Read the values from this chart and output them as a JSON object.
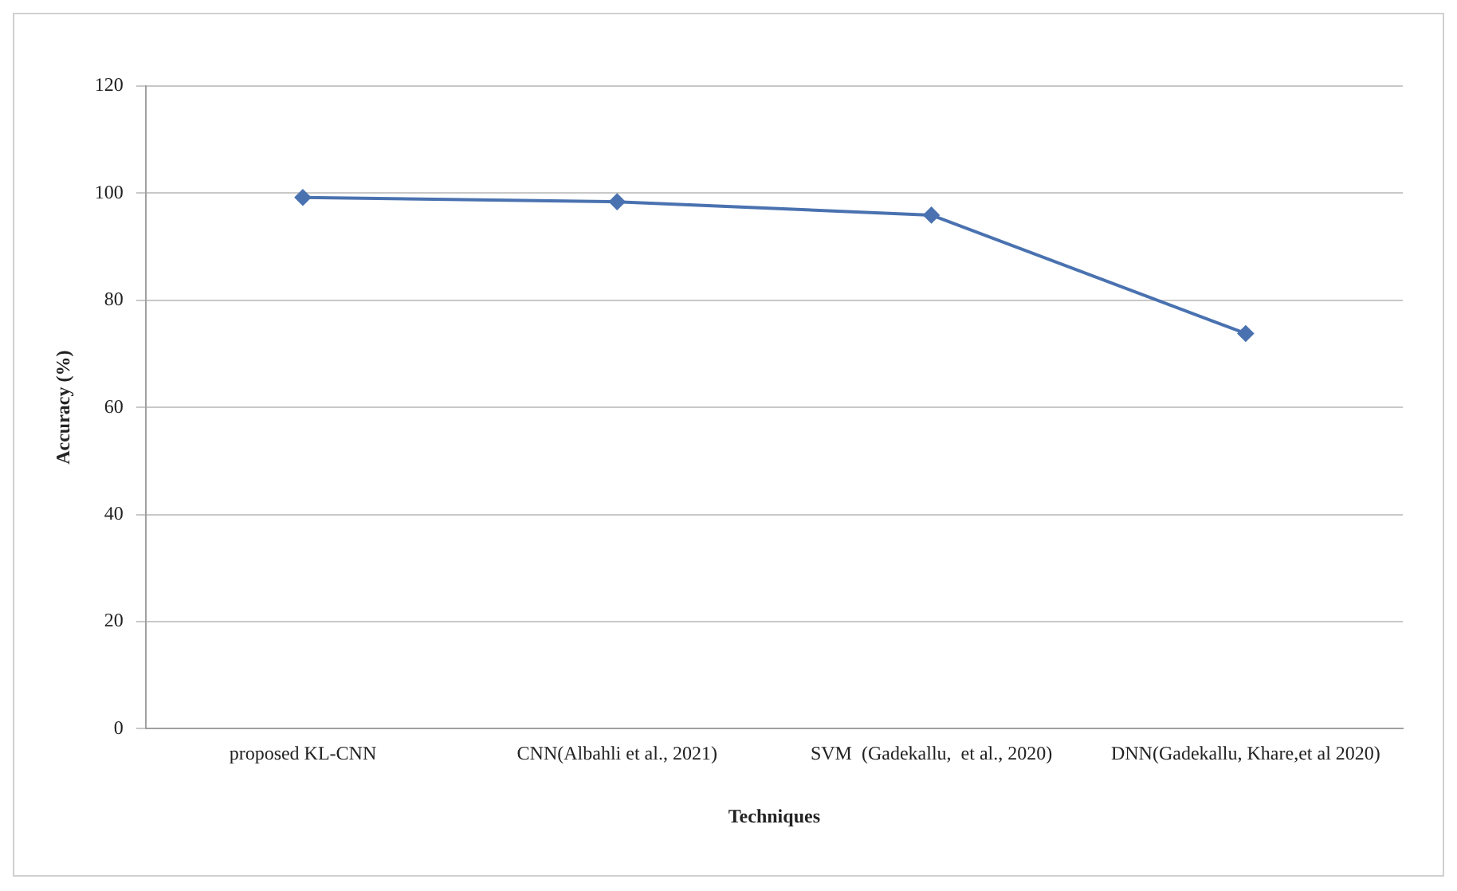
{
  "chart_data": {
    "type": "line",
    "xlabel": "Techniques",
    "ylabel": "Accuracy (%)",
    "categories": [
      "proposed KL-CNN",
      "CNN(Albahli et al., 2021)",
      "SVM  (Gadekallu,  et al., 2020)",
      "DNN(Gadekallu, Khare,et al 2020)"
    ],
    "series": [
      {
        "color": "#4a72b0",
        "values": [
          99.2,
          98.4,
          95.9,
          73.8
        ]
      }
    ],
    "ylim": [
      0,
      120
    ],
    "yticks": [
      0,
      20,
      40,
      60,
      80,
      100,
      120
    ],
    "grid": "y",
    "legend": false,
    "marker": "diamond",
    "line_style": "solid"
  }
}
